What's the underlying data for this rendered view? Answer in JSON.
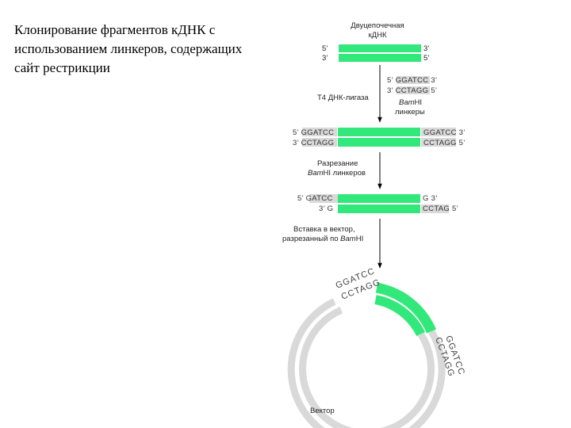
{
  "title": "Клонирование фрагментов кДНК с использованием линкеров, содержащих сайт рестрикции",
  "top_label": [
    "Двуцепочечная",
    "кДНК"
  ],
  "end_labels": {
    "five": "5’",
    "three": "3’"
  },
  "linker_seq": {
    "top": "5’ GGATCC 3’",
    "bottom": "3’ CCTAGG 5’",
    "enzyme": "Bam",
    "enzyme_suffix": "HI",
    "word": "линкеры"
  },
  "ligase": "T4 ДНК-лигаза",
  "ligated": {
    "left_top": "5’ GGATCC",
    "left_bottom": "3’ CCTAGG",
    "right_top": "GGATCC  3’",
    "right_bottom": "CCTAGG  5’"
  },
  "cut_step": {
    "line1": "Разрезание",
    "enzyme": "Bam",
    "line2_rest": "HI линкеров"
  },
  "cut": {
    "left_top": "5’ GATCC",
    "left_bottom": "3’ G",
    "right_top": "G  3’",
    "right_bottom": "CCTAG  5’"
  },
  "insert_step": {
    "line1": "Вставка в вектор,",
    "line2_prefix": "разрезанный по ",
    "enzyme": "Bam",
    "enzyme_suffix": "HI"
  },
  "ring_seq": {
    "left_outer": "GGATCC",
    "left_inner": "CCTAGG",
    "right_outer": "GGATCC",
    "right_inner": "CCTAGG"
  },
  "vector_label": "Вектор",
  "colors": {
    "strand": "#33e87a",
    "vector_ring": "#d9d9d9"
  }
}
